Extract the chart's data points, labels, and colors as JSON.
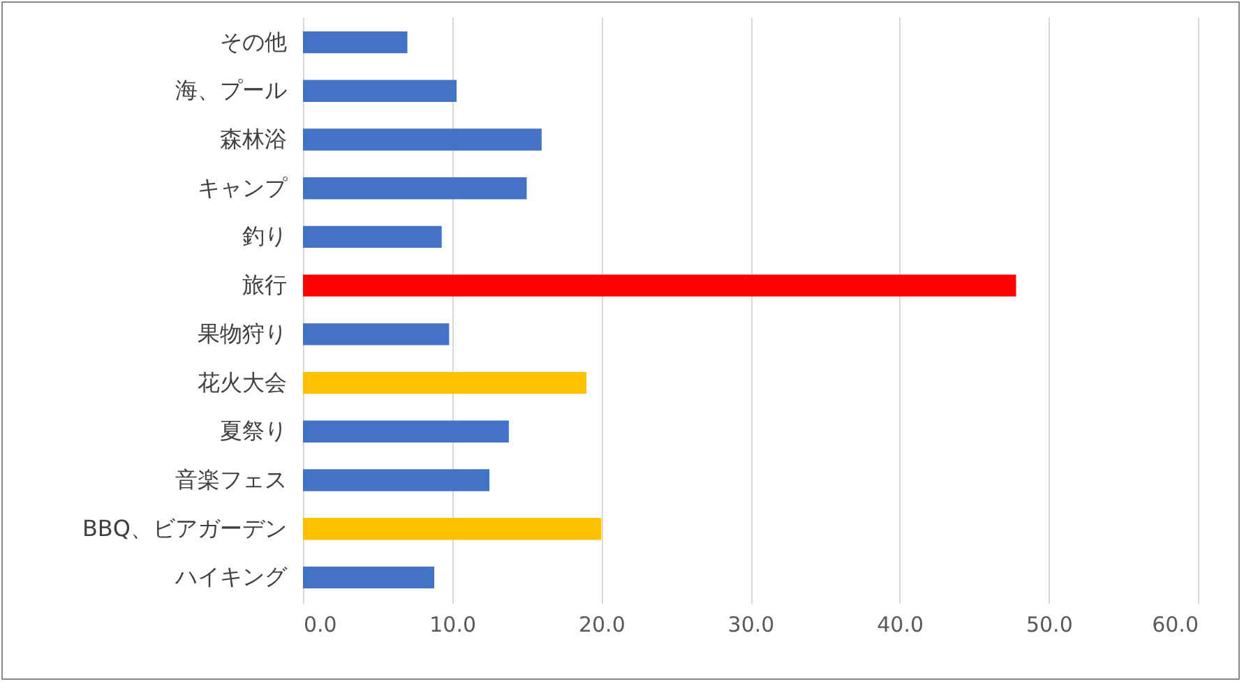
{
  "chart_data": {
    "type": "bar",
    "orientation": "horizontal",
    "categories": [
      "その他",
      "海、プール",
      "森林浴",
      "キャンプ",
      "釣り",
      "旅行",
      "果物狩り",
      "花火大会",
      "夏祭り",
      "音楽フェス",
      "BBQ、ビアガーデン",
      "ハイキング"
    ],
    "values": [
      7.0,
      10.3,
      16.0,
      15.0,
      9.3,
      47.8,
      9.8,
      19.0,
      13.8,
      12.5,
      20.0,
      8.8
    ],
    "colors": [
      "#4472c4",
      "#4472c4",
      "#4472c4",
      "#4472c4",
      "#4472c4",
      "#ff0000",
      "#4472c4",
      "#ffc000",
      "#4472c4",
      "#4472c4",
      "#ffc000",
      "#4472c4"
    ],
    "xlim": [
      0,
      60
    ],
    "xticks": [
      {
        "value": 0,
        "label": "0.0"
      },
      {
        "value": 10,
        "label": "10.0"
      },
      {
        "value": 20,
        "label": "20.0"
      },
      {
        "value": 30,
        "label": "30.0"
      },
      {
        "value": 40,
        "label": "40.0"
      },
      {
        "value": 50,
        "label": "50.0"
      },
      {
        "value": 60,
        "label": "60.0"
      }
    ],
    "grid": "x"
  }
}
